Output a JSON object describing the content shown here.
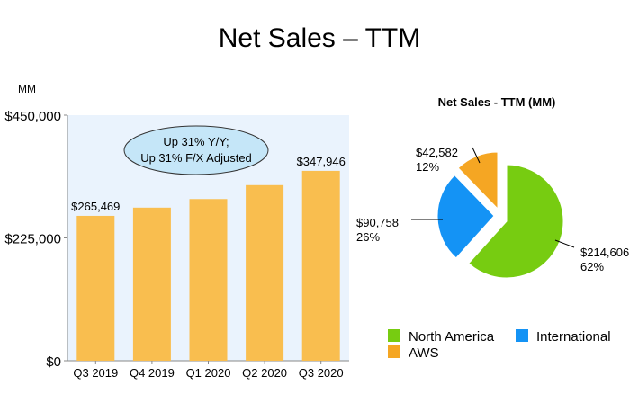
{
  "title": "Net Sales – TTM",
  "chart_data": [
    {
      "type": "bar",
      "title": "",
      "unit_label": "MM",
      "categories": [
        "Q3 2019",
        "Q4 2019",
        "Q1 2020",
        "Q2 2020",
        "Q3 2020"
      ],
      "values": [
        265469,
        280522,
        296274,
        321782,
        347946
      ],
      "data_labels": [
        "$265,469",
        "",
        "",
        "",
        "$347,946"
      ],
      "ylim": [
        0,
        450000
      ],
      "yticks": [
        0,
        225000,
        450000
      ],
      "ytick_labels": [
        "$0",
        "$225,000",
        "$450,000"
      ],
      "bar_color": "#F9BE4F",
      "plot_bg": "#EAF3FD",
      "annotation": {
        "line1": "Up 31% Y/Y;",
        "line2": "Up 31% F/X Adjusted",
        "fill": "#C5E6F8"
      }
    },
    {
      "type": "pie",
      "title": "Net Sales - TTM (MM)",
      "slices": [
        {
          "name": "North America",
          "value": 214606,
          "label": "$214,606",
          "pct": "62%",
          "color": "#77CC11"
        },
        {
          "name": "International",
          "value": 90758,
          "label": "$90,758",
          "pct": "26%",
          "color": "#1493F5"
        },
        {
          "name": "AWS",
          "value": 42582,
          "label": "$42,582",
          "pct": "12%",
          "color": "#F5A623"
        }
      ],
      "legend": "bottom"
    }
  ]
}
